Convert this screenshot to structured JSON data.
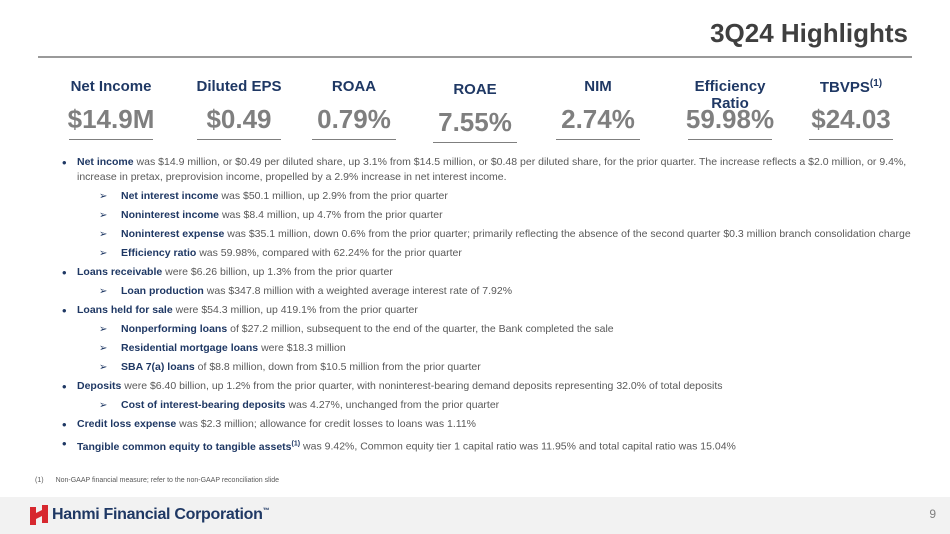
{
  "header": {
    "title": "3Q24 Highlights"
  },
  "metrics": [
    {
      "label": "Net Income",
      "value": "$14.9M"
    },
    {
      "label": "Diluted EPS",
      "value": "$0.49"
    },
    {
      "label": "ROAA",
      "value": "0.79%"
    },
    {
      "label": "ROAE",
      "value": "7.55%"
    },
    {
      "label": "NIM",
      "value": "2.74%"
    },
    {
      "label": "Efficiency Ratio",
      "value": "59.98%"
    },
    {
      "label": "TBVPS",
      "sup": "(1)",
      "value": "$24.03"
    }
  ],
  "bullets": [
    {
      "lead": "Net income",
      "text": "was $14.9 million, or $0.49 per diluted share, up 3.1% from $14.5 million, or $0.48 per diluted share, for the prior quarter. The increase reflects a $2.0 million, or 9.4%, increase in pretax, preprovision income, propelled by a 2.9% increase in net interest income.",
      "subs": [
        {
          "lead": "Net interest income",
          "text": "was $50.1 million, up 2.9% from the prior quarter"
        },
        {
          "lead": "Noninterest income",
          "text": "was $8.4 million, up 4.7% from the prior quarter"
        },
        {
          "lead": "Noninterest expense",
          "text": "was $35.1 million, down 0.6% from the prior quarter; primarily reflecting the absence of the second quarter $0.3 million branch consolidation charge"
        },
        {
          "lead": "Efficiency ratio",
          "text": "was 59.98%, compared with 62.24% for the prior quarter"
        }
      ]
    },
    {
      "lead": "Loans receivable",
      "text": "were $6.26 billion, up 1.3% from the prior quarter",
      "subs": [
        {
          "lead": "Loan production",
          "text": "was $347.8 million with a weighted average interest rate of 7.92%"
        }
      ]
    },
    {
      "lead": "Loans held for sale",
      "text": "were $54.3 million, up 419.1% from the prior quarter",
      "subs": [
        {
          "lead": "Nonperforming loans",
          "text": "of $27.2 million, subsequent to the end of the quarter, the Bank completed the sale"
        },
        {
          "lead": "Residential mortgage loans",
          "text": "were $18.3 million"
        },
        {
          "lead": "SBA 7(a) loans",
          "text": "of $8.8 million, down from $10.5 million from the prior quarter"
        }
      ]
    },
    {
      "lead": "Deposits",
      "text": "were $6.40 billion, up 1.2% from the prior quarter, with noninterest-bearing demand deposits representing 32.0% of total deposits",
      "subs": [
        {
          "lead": "Cost of interest-bearing deposits",
          "text": "was 4.27%, unchanged from the prior quarter"
        }
      ]
    },
    {
      "lead": "Credit loss expense",
      "text": "was $2.3 million; allowance for credit losses to loans was 1.11%",
      "subs": []
    },
    {
      "lead": "Tangible common equity to tangible assets",
      "sup": "(1)",
      "text": "was 9.42%, Common equity tier 1 capital ratio was 11.95% and total capital ratio was 15.04%",
      "subs": []
    }
  ],
  "footnote": {
    "marker": "(1)",
    "text": "Non-GAAP financial measure; refer to the non-GAAP reconciliation slide"
  },
  "footer": {
    "company": "Hanmi Financial Corporation",
    "tm": "™",
    "page": "9"
  }
}
